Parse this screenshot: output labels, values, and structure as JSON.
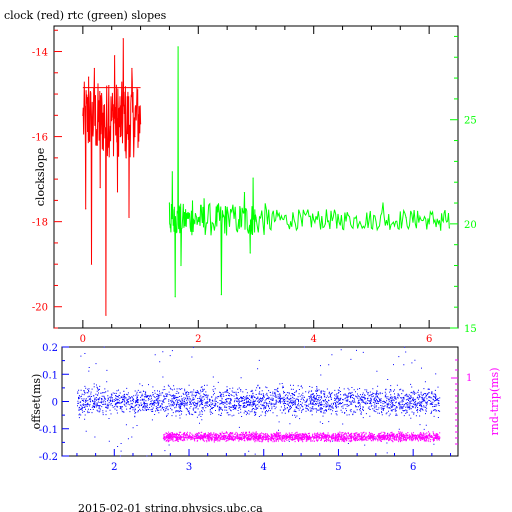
{
  "chart_data": [
    {
      "type": "line",
      "title": "clock (red) rtc (green) slopes",
      "ylabel": "clockslope",
      "xlim": [
        -0.5,
        6.5
      ],
      "ylim_left": [
        -20.5,
        -13.4
      ],
      "ylim_right": [
        15,
        29.5
      ],
      "x_ticks": [
        "0",
        "2",
        "4",
        "6"
      ],
      "y_ticks_left": [
        "-14",
        "-16",
        "-18",
        "-20"
      ],
      "y_ticks_right": [
        "15",
        "20",
        "25"
      ],
      "colors": {
        "clock": "#ff0000",
        "rtc": "#00ff00",
        "axes": "#000000"
      },
      "series": [
        {
          "name": "clock",
          "axis": "left",
          "x": [
            0.0,
            0.05,
            0.1,
            0.15,
            0.2,
            0.25,
            0.3,
            0.35,
            0.4,
            0.45,
            0.5,
            0.55,
            0.6,
            0.65,
            0.7,
            0.75,
            0.8,
            0.85,
            0.9,
            0.95,
            1.0
          ],
          "y": [
            -15.5,
            -17.7,
            -14.6,
            -19.0,
            -14.4,
            -16.2,
            -17.2,
            -15.8,
            -20.2,
            -14.8,
            -15.6,
            -14.1,
            -17.3,
            -16.0,
            -13.7,
            -16.5,
            -17.9,
            -14.4,
            -16.0,
            -14.9,
            -15.7
          ]
        },
        {
          "name": "rtc",
          "axis": "right",
          "x": [
            1.5,
            1.55,
            1.6,
            1.65,
            1.7,
            1.8,
            1.9,
            2.0,
            2.1,
            2.3,
            2.4,
            2.5,
            2.7,
            2.8,
            2.9,
            2.95,
            3.0,
            3.2,
            3.4,
            3.6,
            3.8,
            4.0,
            4.2,
            4.4,
            4.6,
            4.8,
            5.0,
            5.2,
            5.4,
            5.6,
            5.8,
            6.0,
            6.2,
            6.35
          ],
          "y": [
            21.0,
            22.5,
            16.5,
            28.5,
            18.0,
            20.5,
            21.1,
            20.3,
            21.2,
            20.1,
            16.6,
            20.8,
            20.2,
            21.5,
            18.6,
            22.2,
            20.3,
            20.0,
            20.5,
            20.1,
            19.9,
            20.2,
            20.0,
            19.8,
            20.4,
            20.1,
            19.8,
            21.0,
            19.9,
            20.3,
            20.6,
            20.0,
            19.7,
            19.8
          ]
        }
      ]
    },
    {
      "type": "scatter",
      "ylabel_left": "offset(ms)",
      "ylabel_right": "rnd-trip(ms)",
      "xlim": [
        1.3,
        6.6
      ],
      "ylim": [
        -0.2,
        0.2
      ],
      "x_ticks": [
        "2",
        "3",
        "4",
        "5",
        "6"
      ],
      "y_ticks_left": [
        "0.2",
        "0.1",
        "0",
        "-0.1",
        "-0.2"
      ],
      "y_ticks_right": [
        "1"
      ],
      "colors": {
        "offset": "#0000ff",
        "roundtrip": "#ff00ff"
      },
      "series": [
        {
          "name": "offset",
          "x_range": [
            1.5,
            6.35
          ],
          "y_center": 0.0,
          "y_spread": 0.04
        },
        {
          "name": "rnd-trip",
          "x_range": [
            2.65,
            6.35
          ],
          "y_center": -0.13,
          "y_spread": 0.012
        }
      ]
    }
  ],
  "footer": {
    "text": "2015-02-01 string.physics.ubc.ca"
  }
}
